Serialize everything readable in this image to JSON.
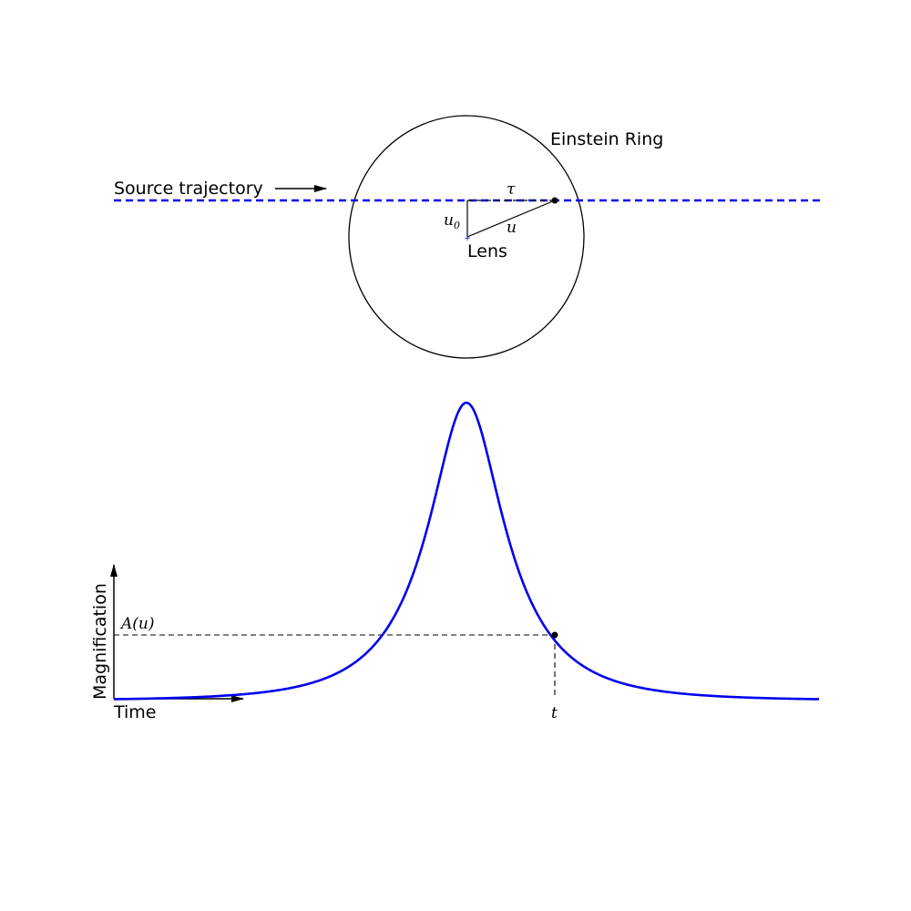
{
  "labels": {
    "einstein_ring": "Einstein Ring",
    "source_trajectory": "Source trajectory",
    "lens": "Lens",
    "tau": "τ",
    "u0_base": "u",
    "u0_sub": "0",
    "u": "u",
    "magnification": "Magnification",
    "time": "Time",
    "amplification": "A(u)",
    "t": "t"
  },
  "colors": {
    "trajectory": "#0000ee",
    "curve": "#0000ee",
    "ink": "#000000"
  },
  "icons": {
    "trajectory_arrow": "arrow-right-icon",
    "axis_arrow_up": "arrow-up-icon",
    "axis_arrow_right": "arrow-right-icon"
  }
}
